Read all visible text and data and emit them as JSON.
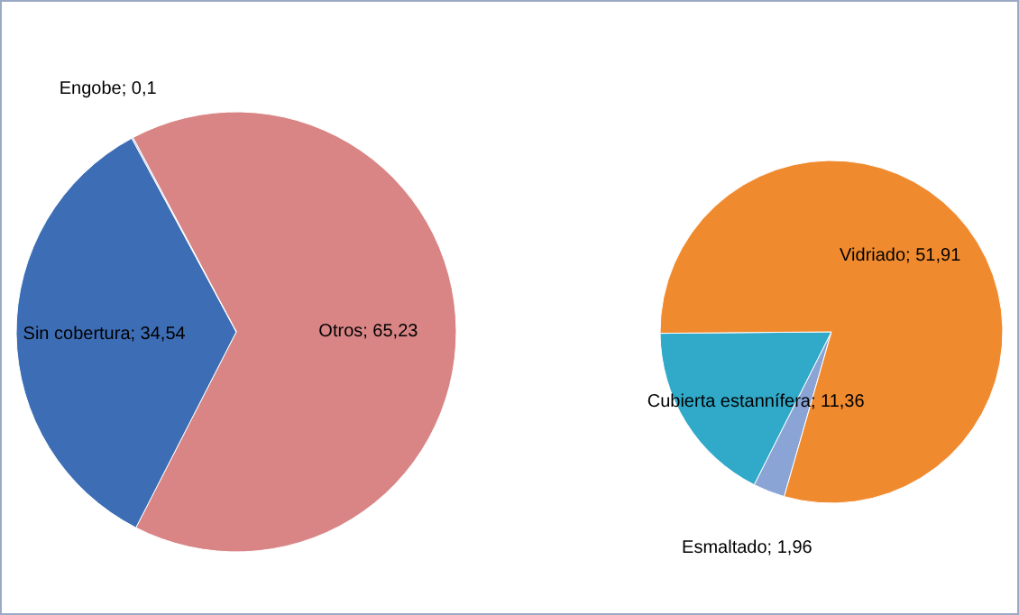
{
  "chart_data": [
    {
      "type": "pie",
      "categories": [
        "Otros",
        "Sin cobertura",
        "Engobe"
      ],
      "values": [
        65.23,
        34.54,
        0.1
      ],
      "colors": [
        "#d98585",
        "#3d6eb5",
        "#a5b6d6"
      ],
      "value_labels": [
        "65,23",
        "34,54",
        "0,1"
      ]
    },
    {
      "type": "pie",
      "categories": [
        "Esmaltado",
        "Cubierta estannífera",
        "Vidriado"
      ],
      "values": [
        1.96,
        11.36,
        51.91
      ],
      "colors": [
        "#8aa4d6",
        "#31a9c9",
        "#f08a2e"
      ],
      "value_labels": [
        "1,96",
        "11,36",
        "51,91"
      ]
    }
  ]
}
